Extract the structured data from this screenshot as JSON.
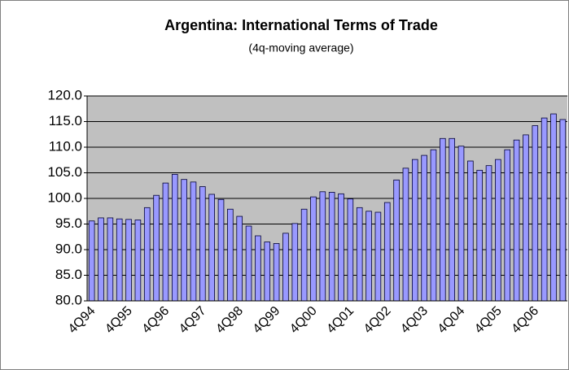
{
  "chart_data": {
    "type": "bar",
    "title": "Argentina: International Terms of Trade",
    "subtitle": "(4q-moving average)",
    "categories": [
      "4Q94",
      null,
      null,
      null,
      "4Q95",
      null,
      null,
      null,
      "4Q96",
      null,
      null,
      null,
      "4Q97",
      null,
      null,
      null,
      "4Q98",
      null,
      null,
      null,
      "4Q99",
      null,
      null,
      null,
      "4Q00",
      null,
      null,
      null,
      "4Q01",
      null,
      null,
      null,
      "4Q02",
      null,
      null,
      null,
      "4Q03",
      null,
      null,
      null,
      "4Q04",
      null,
      null,
      null,
      "4Q05",
      null,
      null,
      null,
      "4Q06",
      null,
      null,
      null
    ],
    "values": [
      95.6,
      96.2,
      96.2,
      96.0,
      95.9,
      95.8,
      98.2,
      100.6,
      103.0,
      104.7,
      103.7,
      103.2,
      102.3,
      100.8,
      99.8,
      97.9,
      96.5,
      94.6,
      92.7,
      91.5,
      91.2,
      93.2,
      95.1,
      97.9,
      100.3,
      101.3,
      101.2,
      100.9,
      99.9,
      98.2,
      97.5,
      97.3,
      99.2,
      103.6,
      105.9,
      107.6,
      108.4,
      109.5,
      111.7,
      111.7,
      110.2,
      107.3,
      105.5,
      106.4,
      107.6,
      109.5,
      111.4,
      112.4,
      114.2,
      115.7,
      116.5,
      115.4
    ],
    "color": "#9999ff",
    "ylim": [
      80,
      120
    ],
    "yticks": [
      {
        "value": 80,
        "label": "80.0"
      },
      {
        "value": 85,
        "label": "85.0"
      },
      {
        "value": 90,
        "label": "90.0"
      },
      {
        "value": 95,
        "label": "95.0"
      },
      {
        "value": 100,
        "label": "100.0"
      },
      {
        "value": 105,
        "label": "105.0"
      },
      {
        "value": 110,
        "label": "110.0"
      },
      {
        "value": 115,
        "label": "115.0"
      },
      {
        "value": 120,
        "label": "120.0"
      }
    ],
    "grid": true
  }
}
